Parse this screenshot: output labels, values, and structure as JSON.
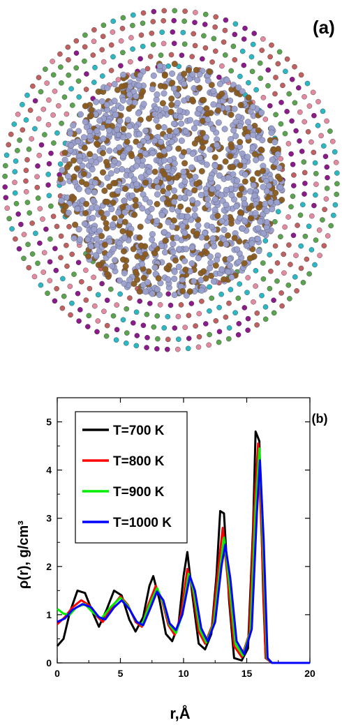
{
  "panel_a": {
    "label": "(a)",
    "colors": {
      "inner_primary": "#9aa0cc",
      "inner_secondary": "#8a5a1c",
      "shell_colors": [
        "#8b1a8b",
        "#2bb8c4",
        "#e48aa0",
        "#5aa44f",
        "#c06060"
      ]
    }
  },
  "panel_b": {
    "label": "(b)"
  },
  "chart_data": {
    "type": "line",
    "xlabel": "r,Å",
    "ylabel": "ρ(r), g/cm³",
    "xlim": [
      0,
      20
    ],
    "ylim": [
      0,
      5.5
    ],
    "x_ticks": [
      "0",
      "5",
      "10",
      "15",
      "20"
    ],
    "y_ticks": [
      "0",
      "1",
      "2",
      "3",
      "4",
      "5"
    ],
    "legend_position": "top-left",
    "grid": false,
    "series": [
      {
        "name": "T=700 K",
        "color": "#000000",
        "points": [
          [
            0,
            0.35
          ],
          [
            0.5,
            0.5
          ],
          [
            1.0,
            1.05
          ],
          [
            1.6,
            1.5
          ],
          [
            2.2,
            1.45
          ],
          [
            2.8,
            1.05
          ],
          [
            3.3,
            0.75
          ],
          [
            3.9,
            1.1
          ],
          [
            4.5,
            1.5
          ],
          [
            5.1,
            1.4
          ],
          [
            5.7,
            0.9
          ],
          [
            6.2,
            0.65
          ],
          [
            6.8,
            0.95
          ],
          [
            7.3,
            1.6
          ],
          [
            7.6,
            1.8
          ],
          [
            8.1,
            1.3
          ],
          [
            8.6,
            0.6
          ],
          [
            9.1,
            0.45
          ],
          [
            9.6,
            0.8
          ],
          [
            10.0,
            1.8
          ],
          [
            10.3,
            2.3
          ],
          [
            10.7,
            1.4
          ],
          [
            11.2,
            0.4
          ],
          [
            11.7,
            0.28
          ],
          [
            12.2,
            0.6
          ],
          [
            12.6,
            1.8
          ],
          [
            12.9,
            3.15
          ],
          [
            13.2,
            3.1
          ],
          [
            13.6,
            1.3
          ],
          [
            14.0,
            0.1
          ],
          [
            14.6,
            0.05
          ],
          [
            15.1,
            0.3
          ],
          [
            15.5,
            2.8
          ],
          [
            15.7,
            4.8
          ],
          [
            16.0,
            4.6
          ],
          [
            16.3,
            1.5
          ],
          [
            16.5,
            0.1
          ],
          [
            17.0,
            0.0
          ],
          [
            20.0,
            0.0
          ]
        ]
      },
      {
        "name": "T=800 K",
        "color": "#ff0000",
        "points": [
          [
            0,
            0.8
          ],
          [
            0.6,
            0.95
          ],
          [
            1.2,
            1.15
          ],
          [
            1.9,
            1.3
          ],
          [
            2.5,
            1.2
          ],
          [
            3.1,
            0.98
          ],
          [
            3.6,
            0.85
          ],
          [
            4.3,
            1.15
          ],
          [
            5.0,
            1.38
          ],
          [
            5.6,
            1.2
          ],
          [
            6.2,
            0.85
          ],
          [
            6.7,
            0.75
          ],
          [
            7.2,
            1.2
          ],
          [
            7.8,
            1.6
          ],
          [
            8.3,
            1.3
          ],
          [
            8.8,
            0.78
          ],
          [
            9.3,
            0.58
          ],
          [
            9.8,
            1.0
          ],
          [
            10.3,
            1.95
          ],
          [
            10.7,
            1.55
          ],
          [
            11.2,
            0.65
          ],
          [
            11.7,
            0.4
          ],
          [
            12.3,
            0.8
          ],
          [
            12.8,
            2.1
          ],
          [
            13.1,
            2.8
          ],
          [
            13.5,
            1.7
          ],
          [
            14.0,
            0.35
          ],
          [
            14.6,
            0.12
          ],
          [
            15.2,
            0.6
          ],
          [
            15.6,
            3.2
          ],
          [
            15.9,
            4.55
          ],
          [
            16.2,
            2.5
          ],
          [
            16.5,
            0.1
          ],
          [
            17.0,
            0.0
          ],
          [
            20.0,
            0.0
          ]
        ]
      },
      {
        "name": "T=900 K",
        "color": "#00ee00",
        "points": [
          [
            0,
            1.12
          ],
          [
            0.5,
            1.02
          ],
          [
            1.0,
            1.0
          ],
          [
            1.5,
            1.15
          ],
          [
            2.2,
            1.22
          ],
          [
            2.8,
            1.05
          ],
          [
            3.5,
            0.92
          ],
          [
            4.2,
            1.15
          ],
          [
            5.0,
            1.35
          ],
          [
            5.6,
            1.18
          ],
          [
            6.2,
            0.88
          ],
          [
            6.7,
            0.78
          ],
          [
            7.3,
            1.2
          ],
          [
            7.9,
            1.55
          ],
          [
            8.4,
            1.25
          ],
          [
            8.9,
            0.78
          ],
          [
            9.4,
            0.62
          ],
          [
            9.9,
            1.0
          ],
          [
            10.4,
            1.85
          ],
          [
            10.8,
            1.5
          ],
          [
            11.3,
            0.68
          ],
          [
            11.8,
            0.42
          ],
          [
            12.4,
            0.82
          ],
          [
            12.9,
            2.0
          ],
          [
            13.2,
            2.6
          ],
          [
            13.6,
            1.7
          ],
          [
            14.1,
            0.4
          ],
          [
            14.7,
            0.15
          ],
          [
            15.3,
            0.65
          ],
          [
            15.7,
            3.2
          ],
          [
            16.0,
            4.45
          ],
          [
            16.3,
            2.4
          ],
          [
            16.6,
            0.1
          ],
          [
            17.0,
            0.0
          ],
          [
            20.0,
            0.0
          ]
        ]
      },
      {
        "name": "T=1000 K",
        "color": "#0000ff",
        "points": [
          [
            0,
            0.85
          ],
          [
            0.6,
            0.92
          ],
          [
            1.2,
            1.1
          ],
          [
            2.0,
            1.22
          ],
          [
            2.7,
            1.15
          ],
          [
            3.3,
            0.95
          ],
          [
            3.8,
            0.9
          ],
          [
            4.5,
            1.15
          ],
          [
            5.1,
            1.3
          ],
          [
            5.7,
            1.12
          ],
          [
            6.3,
            0.85
          ],
          [
            6.8,
            0.78
          ],
          [
            7.4,
            1.15
          ],
          [
            7.9,
            1.48
          ],
          [
            8.4,
            1.3
          ],
          [
            8.9,
            0.82
          ],
          [
            9.4,
            0.68
          ],
          [
            9.9,
            1.0
          ],
          [
            10.5,
            1.8
          ],
          [
            10.9,
            1.5
          ],
          [
            11.4,
            0.72
          ],
          [
            11.9,
            0.45
          ],
          [
            12.5,
            0.85
          ],
          [
            13.0,
            2.0
          ],
          [
            13.3,
            2.45
          ],
          [
            13.7,
            1.75
          ],
          [
            14.2,
            0.45
          ],
          [
            14.8,
            0.18
          ],
          [
            15.4,
            0.7
          ],
          [
            15.8,
            3.1
          ],
          [
            16.05,
            4.2
          ],
          [
            16.35,
            2.5
          ],
          [
            16.65,
            0.1
          ],
          [
            17.0,
            0.0
          ],
          [
            20.0,
            0.0
          ]
        ]
      }
    ]
  }
}
